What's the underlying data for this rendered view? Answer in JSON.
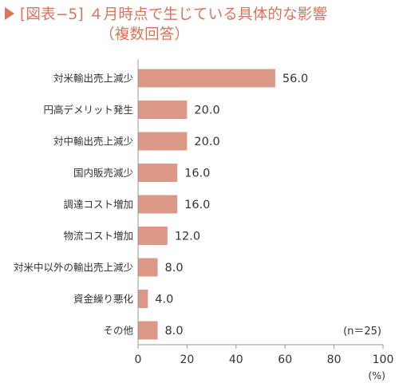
{
  "title": {
    "line1": "[図表−5] ４月時点で生じている具体的な影響",
    "line2": "（複数回答）"
  },
  "colors": {
    "title": "#d9735b",
    "bar": "#dc9887",
    "axis": "#999999",
    "text": "#333333",
    "title_marker": "#d9735b"
  },
  "chart_data": {
    "type": "bar",
    "orientation": "horizontal",
    "categories": [
      "対米輸出売上減少",
      "円高デメリット発生",
      "対中輸出売上減少",
      "国内販売減少",
      "調達コスト増加",
      "物流コスト増加",
      "対米中以外の輸出売上減少",
      "資金繰り悪化",
      "その他"
    ],
    "values": [
      56.0,
      20.0,
      20.0,
      16.0,
      16.0,
      12.0,
      8.0,
      4.0,
      8.0
    ],
    "value_labels": [
      "56.0",
      "20.0",
      "20.0",
      "16.0",
      "16.0",
      "12.0",
      "8.0",
      "4.0",
      "8.0"
    ],
    "title": "[図表−5] ４月時点で生じている具体的な影響（複数回答）",
    "xlabel": "",
    "ylabel": "",
    "unit": "(%)",
    "note": "(n＝25)",
    "xlim": [
      0,
      100
    ],
    "xticks": [
      0,
      20,
      40,
      60,
      80,
      100
    ],
    "grid": false,
    "legend": "none"
  }
}
